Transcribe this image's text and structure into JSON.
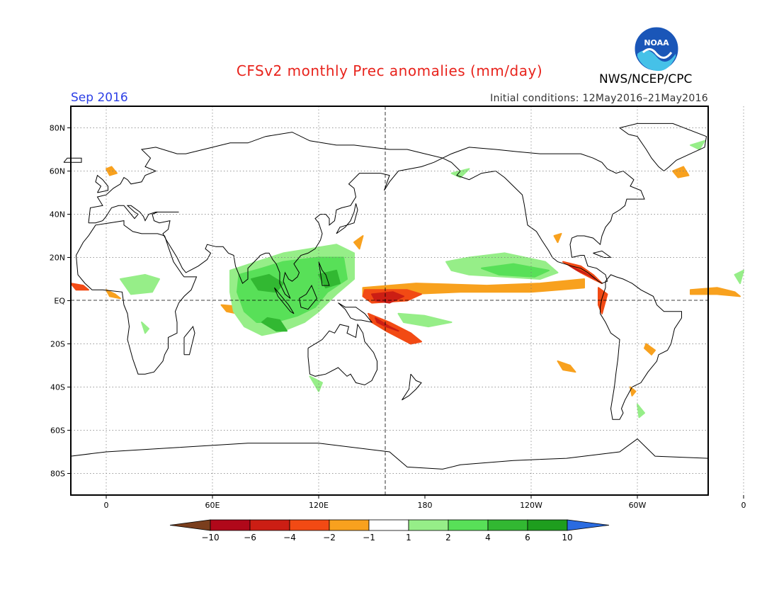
{
  "title": "CFSv2 monthly Prec anomalies (mm/day)",
  "agency": "NWS/NCEP/CPC",
  "period": "Sep 2016",
  "initial_conditions": "Initial conditions: 12May2016–21May2016",
  "logo_text": "NOAA",
  "map": {
    "projection": "cylindrical equidistant",
    "lon_range": [
      -20,
      340
    ],
    "lat_range": [
      -90,
      90
    ],
    "lat_ticks": [
      {
        "lat": 80,
        "label": "80N"
      },
      {
        "lat": 60,
        "label": "60N"
      },
      {
        "lat": 40,
        "label": "40N"
      },
      {
        "lat": 20,
        "label": "20N"
      },
      {
        "lat": 0,
        "label": "EQ"
      },
      {
        "lat": -20,
        "label": "20S"
      },
      {
        "lat": -40,
        "label": "40S"
      },
      {
        "lat": -60,
        "label": "60S"
      },
      {
        "lat": -80,
        "label": "80S"
      }
    ],
    "lon_ticks": [
      {
        "lon": 0,
        "label": "0"
      },
      {
        "lon": 60,
        "label": "60E"
      },
      {
        "lon": 120,
        "label": "120E"
      },
      {
        "lon": 180,
        "label": "180"
      },
      {
        "lon": 240,
        "label": "120W"
      },
      {
        "lon": 300,
        "label": "60W"
      },
      {
        "lon": 360,
        "label": "0"
      }
    ]
  },
  "colorbar": {
    "colors": [
      "#7a3e1d",
      "#b0081a",
      "#cc1e14",
      "#f24a14",
      "#f8a11e",
      "#ffffff",
      "#96ee88",
      "#58e058",
      "#32b832",
      "#1e9e1e",
      "#2a6be0"
    ],
    "labels": [
      "-10",
      "-6",
      "-4",
      "-2",
      "-1",
      "1",
      "2",
      "4",
      "6",
      "10"
    ]
  },
  "anomaly_regions": [
    {
      "name": "Central Pacific equatorial band",
      "level": "-4",
      "color": "#f24a14"
    },
    {
      "name": "Central Pacific core",
      "level": "-6",
      "color": "#cc1e14"
    },
    {
      "name": "Maritime Continent / Philippines",
      "level": "4",
      "color": "#58e058"
    },
    {
      "name": "Indian Ocean",
      "level": "2",
      "color": "#96ee88"
    },
    {
      "name": "Eastern Pacific / Central America",
      "level": "-6",
      "color": "#cc1e14"
    },
    {
      "name": "NE Pacific ITCZ",
      "level": "2",
      "color": "#96ee88"
    }
  ]
}
